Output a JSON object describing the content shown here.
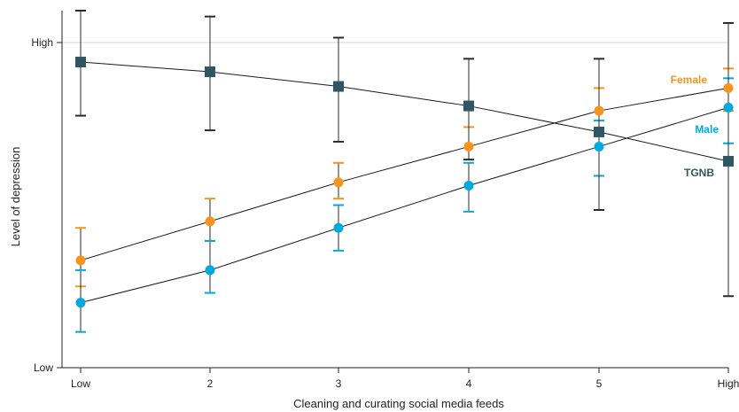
{
  "chart_data": {
    "type": "line",
    "x_categories": [
      "Low",
      "2",
      "3",
      "4",
      "5",
      "High"
    ],
    "y_tick_labels": [
      "High",
      "Low"
    ],
    "xlabel": "Cleaning and curating social media feeds",
    "ylabel": "Level of depression",
    "ylim": [
      0,
      100
    ],
    "y_ticks": [
      0,
      100
    ],
    "grid": "horizontal line at High only",
    "series": [
      {
        "name": "Female",
        "color": "#f7941d",
        "marker": "circle",
        "values": [
          33.0,
          45.0,
          57.0,
          68.0,
          79.0,
          86.0
        ],
        "err_low": [
          25.0,
          39.0,
          52.0,
          64.0,
          72.0,
          79.0
        ],
        "err_high": [
          43.0,
          52.0,
          63.0,
          74.0,
          86.0,
          92.0
        ]
      },
      {
        "name": "Male",
        "color": "#00a9e0",
        "marker": "circle",
        "values": [
          20.0,
          30.0,
          43.0,
          56.0,
          68.0,
          80.0
        ],
        "err_low": [
          11.0,
          23.0,
          36.0,
          48.0,
          59.0,
          69.0
        ],
        "err_high": [
          30.0,
          39.0,
          50.0,
          63.0,
          76.0,
          89.0
        ]
      },
      {
        "name": "TGNB",
        "color": "#2f5663",
        "marker": "square",
        "values": [
          94.0,
          91.0,
          86.5,
          80.5,
          72.5,
          63.5
        ],
        "err_low": [
          77.5,
          73.0,
          69.5,
          64.0,
          48.5,
          22.0
        ],
        "err_high": [
          110.0,
          108.0,
          101.5,
          95.0,
          95.0,
          106.0
        ]
      }
    ]
  }
}
